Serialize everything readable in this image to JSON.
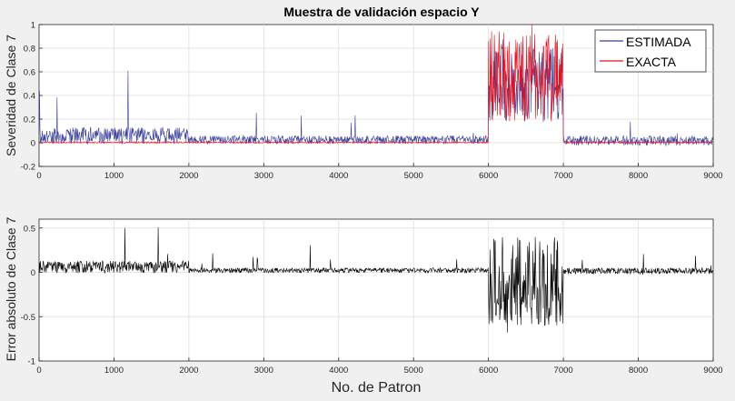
{
  "figure": {
    "background": "#f0f0f0"
  },
  "chart_data": [
    {
      "type": "line",
      "title": "Muestra de validación espacio Y",
      "xlabel": "",
      "ylabel": "Severidad de Clase 7",
      "xlim": [
        0,
        9000
      ],
      "ylim": [
        -0.2,
        1
      ],
      "xticks": [
        0,
        1000,
        2000,
        3000,
        4000,
        5000,
        6000,
        7000,
        8000,
        9000
      ],
      "xtick_labels": [
        "0",
        "1000",
        "2000",
        "3000",
        "4000",
        "5000",
        "6000",
        "7000",
        "8000",
        "9000"
      ],
      "yticks": [
        -0.2,
        0,
        0.2,
        0.4,
        0.6,
        0.8,
        1
      ],
      "ytick_labels": [
        "-0.2",
        "0",
        "0.2",
        "0.4",
        "0.6",
        "0.8",
        "1"
      ],
      "grid": true,
      "legend_position": "top-right",
      "series": [
        {
          "name": "ESTIMADA",
          "color": "#3a3f9a",
          "segments": [
            {
              "x_range": [
                0,
                2000
              ],
              "baseline": 0.03,
              "spread": 0.1,
              "spike_max": 0.6
            },
            {
              "x_range": [
                2000,
                6000
              ],
              "baseline": 0.01,
              "spread": 0.05,
              "spike_max": 0.3
            },
            {
              "x_range": [
                6000,
                7000
              ],
              "baseline": 0.35,
              "spread": 0.45,
              "spike_max": 0.9
            },
            {
              "x_range": [
                7000,
                9000
              ],
              "baseline": 0.0,
              "spread": 0.06,
              "spike_max": 0.25
            }
          ]
        },
        {
          "name": "EXACTA",
          "color": "#e8101c",
          "segments": [
            {
              "x_range": [
                0,
                6000
              ],
              "baseline": 0.0,
              "spread": 0.01,
              "spike_max": 0.02
            },
            {
              "x_range": [
                6000,
                7000
              ],
              "baseline": 0.4,
              "spread": 0.55,
              "spike_max": 0.95
            },
            {
              "x_range": [
                7000,
                9000
              ],
              "baseline": 0.0,
              "spread": 0.01,
              "spike_max": 0.02
            }
          ]
        }
      ]
    },
    {
      "type": "line",
      "title": "",
      "xlabel": "No. de Patron",
      "ylabel": "Error absoluto de Clase 7",
      "xlim": [
        0,
        9000
      ],
      "ylim": [
        -1,
        0.6
      ],
      "xticks": [
        0,
        1000,
        2000,
        3000,
        4000,
        5000,
        6000,
        7000,
        8000,
        9000
      ],
      "xtick_labels": [
        "0",
        "1000",
        "2000",
        "3000",
        "4000",
        "5000",
        "6000",
        "7000",
        "8000",
        "9000"
      ],
      "yticks": [
        -1,
        -0.5,
        0,
        0.5
      ],
      "ytick_labels": [
        "-1",
        "-0.5",
        "0",
        "0.5"
      ],
      "grid": true,
      "series": [
        {
          "color": "#000000",
          "segments": [
            {
              "x_range": [
                0,
                2000
              ],
              "baseline": 0.03,
              "spread": 0.1,
              "spike_max": 0.55
            },
            {
              "x_range": [
                2000,
                6000
              ],
              "baseline": 0.01,
              "spread": 0.04,
              "spike_max": 0.3
            },
            {
              "x_range": [
                6000,
                7000
              ],
              "baseline": -0.1,
              "spread": 0.5,
              "spike_max": 0.7
            },
            {
              "x_range": [
                7000,
                9000
              ],
              "baseline": 0.0,
              "spread": 0.05,
              "spike_max": 0.25
            }
          ]
        }
      ]
    }
  ]
}
